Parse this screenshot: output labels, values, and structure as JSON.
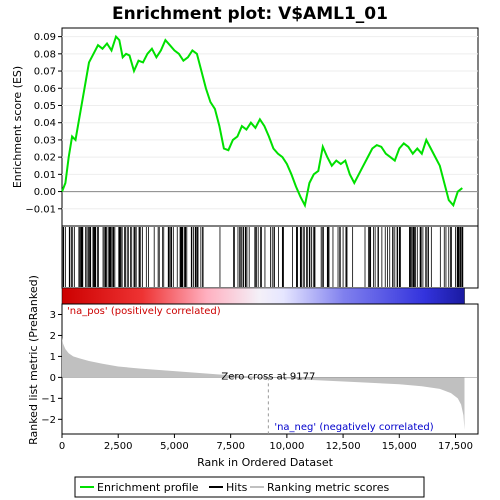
{
  "chart_data": [
    {
      "type": "line",
      "title": "Enrichment plot: V$AML1_01",
      "ylabel": "Enrichment score (ES)",
      "ylim": [
        -0.02,
        0.095
      ],
      "xlim": [
        0,
        18500
      ],
      "yticks": [
        -0.01,
        0.0,
        0.01,
        0.02,
        0.03,
        0.04,
        0.05,
        0.06,
        0.07,
        0.08,
        0.09
      ],
      "ytick_labels": [
        "−0.01",
        "0.00",
        "0.01",
        "0.02",
        "0.03",
        "0.04",
        "0.05",
        "0.06",
        "0.07",
        "0.08",
        "0.09"
      ],
      "color": "#00e000",
      "series": [
        {
          "name": "Enrichment profile",
          "x": [
            0,
            150,
            300,
            450,
            600,
            800,
            1000,
            1200,
            1400,
            1600,
            1800,
            2000,
            2200,
            2400,
            2550,
            2700,
            2850,
            3000,
            3200,
            3400,
            3600,
            3800,
            4000,
            4200,
            4400,
            4600,
            4800,
            5000,
            5200,
            5400,
            5600,
            5800,
            6000,
            6200,
            6400,
            6600,
            6800,
            7000,
            7200,
            7400,
            7600,
            7800,
            8000,
            8200,
            8400,
            8600,
            8800,
            9000,
            9200,
            9400,
            9600,
            9800,
            10000,
            10200,
            10400,
            10600,
            10800,
            11000,
            11200,
            11400,
            11600,
            11800,
            12000,
            12200,
            12400,
            12600,
            12800,
            13000,
            13200,
            13400,
            13600,
            13800,
            14000,
            14200,
            14400,
            14600,
            14800,
            15000,
            15200,
            15400,
            15600,
            15800,
            16000,
            16200,
            16400,
            16600,
            16800,
            17000,
            17200,
            17400,
            17600,
            17800
          ],
          "y": [
            0.0,
            0.005,
            0.02,
            0.032,
            0.03,
            0.045,
            0.06,
            0.075,
            0.08,
            0.085,
            0.083,
            0.086,
            0.082,
            0.09,
            0.088,
            0.078,
            0.08,
            0.079,
            0.07,
            0.076,
            0.075,
            0.08,
            0.083,
            0.078,
            0.082,
            0.088,
            0.085,
            0.082,
            0.08,
            0.076,
            0.078,
            0.082,
            0.08,
            0.07,
            0.06,
            0.052,
            0.048,
            0.038,
            0.025,
            0.024,
            0.03,
            0.032,
            0.038,
            0.036,
            0.04,
            0.037,
            0.042,
            0.038,
            0.032,
            0.025,
            0.022,
            0.02,
            0.016,
            0.01,
            0.003,
            -0.003,
            -0.008,
            0.005,
            0.01,
            0.012,
            0.026,
            0.02,
            0.015,
            0.018,
            0.016,
            0.018,
            0.01,
            0.005,
            0.01,
            0.015,
            0.02,
            0.025,
            0.027,
            0.026,
            0.022,
            0.02,
            0.018,
            0.025,
            0.028,
            0.026,
            0.022,
            0.025,
            0.022,
            0.03,
            0.025,
            0.02,
            0.015,
            0.005,
            -0.005,
            -0.008,
            0.0,
            0.002
          ]
        }
      ]
    },
    {
      "type": "area",
      "ylabel": "Ranked list metric (PreRanked)",
      "xlabel": "Rank in Ordered Dataset",
      "ylim": [
        -2.7,
        3.5
      ],
      "xlim": [
        0,
        18500
      ],
      "yticks": [
        -2,
        -1,
        0,
        1,
        2,
        3
      ],
      "ytick_labels": [
        "−2",
        "−1",
        "0",
        "1",
        "2",
        "3"
      ],
      "xticks": [
        0,
        2500,
        5000,
        7500,
        10000,
        12500,
        15000,
        17500
      ],
      "xtick_labels": [
        "0",
        "2,500",
        "5,000",
        "7,500",
        "10,000",
        "12,500",
        "15,000",
        "17,500"
      ],
      "zero_cross": 9177,
      "zero_cross_label": "Zero cross at 9177",
      "pos_label": "'na_pos' (positively correlated)",
      "neg_label": "'na_neg' (negatively correlated)",
      "pos_color": "#cc0000",
      "neg_color": "#0000cc",
      "fill_color": "#c0c0c0",
      "series": [
        {
          "name": "Ranking metric scores",
          "x": [
            0,
            50,
            150,
            300,
            500,
            800,
            1200,
            1800,
            2500,
            3500,
            5000,
            7000,
            9177,
            11000,
            13000,
            15000,
            16000,
            16800,
            17300,
            17600,
            17750,
            17850,
            17900
          ],
          "y": [
            1.9,
            1.6,
            1.35,
            1.15,
            1.0,
            0.9,
            0.78,
            0.65,
            0.52,
            0.42,
            0.3,
            0.14,
            0.0,
            -0.12,
            -0.22,
            -0.33,
            -0.42,
            -0.55,
            -0.75,
            -1.0,
            -1.3,
            -1.8,
            -2.5
          ]
        }
      ]
    }
  ],
  "legend": {
    "items": [
      {
        "label": "Enrichment profile",
        "color": "#00e000"
      },
      {
        "label": "Hits",
        "color": "#000000"
      },
      {
        "label": "Ranking metric scores",
        "color": "#c0c0c0"
      }
    ]
  },
  "hits_seed": 7
}
